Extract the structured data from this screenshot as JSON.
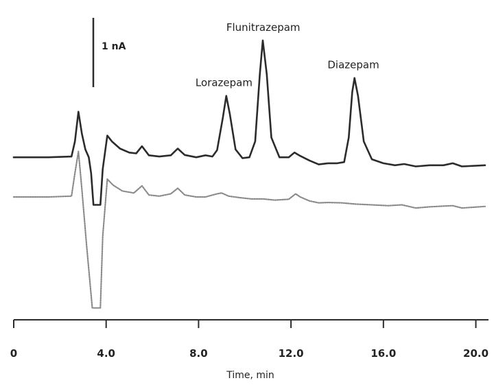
{
  "chart_data": {
    "type": "line",
    "title": "",
    "xlabel": "Time, min",
    "ylabel": "",
    "xlim": [
      0,
      20.4
    ],
    "ylim": [
      -4.1,
      3.45
    ],
    "xticks": [
      0,
      4,
      8,
      12,
      16,
      20
    ],
    "xtick_labels": [
      "0",
      "4.0",
      "8.0",
      "12.0",
      "16.0",
      "20.0"
    ],
    "scale_bar": {
      "label": "1 nA",
      "value_nA": 1.0
    },
    "peak_labels": [
      {
        "text": "Lorazepam",
        "x": 9.1
      },
      {
        "text": "Flunitrazepam",
        "x": 10.8
      },
      {
        "text": "Diazepam",
        "x": 14.7
      }
    ],
    "series": [
      {
        "style": "solid",
        "color": "#2b2b2b",
        "points": [
          [
            0,
            0.0
          ],
          [
            1.5,
            0.0
          ],
          [
            2.5,
            0.02
          ],
          [
            2.65,
            0.4
          ],
          [
            2.8,
            1.15
          ],
          [
            2.95,
            0.6
          ],
          [
            3.1,
            0.2
          ],
          [
            3.25,
            0.0
          ],
          [
            3.35,
            -0.4
          ],
          [
            3.45,
            -1.2
          ],
          [
            3.75,
            -1.2
          ],
          [
            3.85,
            -0.3
          ],
          [
            4.05,
            0.55
          ],
          [
            4.25,
            0.4
          ],
          [
            4.6,
            0.22
          ],
          [
            5.0,
            0.12
          ],
          [
            5.3,
            0.1
          ],
          [
            5.55,
            0.28
          ],
          [
            5.85,
            0.05
          ],
          [
            6.3,
            0.02
          ],
          [
            6.8,
            0.05
          ],
          [
            7.1,
            0.22
          ],
          [
            7.4,
            0.06
          ],
          [
            7.9,
            0.0
          ],
          [
            8.3,
            0.05
          ],
          [
            8.6,
            0.02
          ],
          [
            8.8,
            0.18
          ],
          [
            9.05,
            1.0
          ],
          [
            9.2,
            1.55
          ],
          [
            9.35,
            1.1
          ],
          [
            9.6,
            0.2
          ],
          [
            9.9,
            -0.02
          ],
          [
            10.2,
            0.0
          ],
          [
            10.45,
            0.4
          ],
          [
            10.65,
            2.1
          ],
          [
            10.78,
            2.95
          ],
          [
            10.95,
            2.1
          ],
          [
            11.15,
            0.5
          ],
          [
            11.5,
            0.0
          ],
          [
            11.9,
            0.0
          ],
          [
            12.15,
            0.12
          ],
          [
            12.35,
            0.05
          ],
          [
            12.8,
            -0.08
          ],
          [
            13.2,
            -0.18
          ],
          [
            13.6,
            -0.15
          ],
          [
            14.0,
            -0.15
          ],
          [
            14.3,
            -0.12
          ],
          [
            14.5,
            0.5
          ],
          [
            14.65,
            1.65
          ],
          [
            14.75,
            2.0
          ],
          [
            14.9,
            1.55
          ],
          [
            15.15,
            0.4
          ],
          [
            15.5,
            -0.05
          ],
          [
            16.0,
            -0.15
          ],
          [
            16.5,
            -0.2
          ],
          [
            16.9,
            -0.17
          ],
          [
            17.4,
            -0.23
          ],
          [
            18.0,
            -0.2
          ],
          [
            18.6,
            -0.2
          ],
          [
            19.0,
            -0.15
          ],
          [
            19.4,
            -0.23
          ],
          [
            20.4,
            -0.2
          ]
        ]
      },
      {
        "style": "dotted",
        "color": "#8a8a8a",
        "points": [
          [
            0,
            -1.0
          ],
          [
            1.5,
            -1.0
          ],
          [
            2.5,
            -0.98
          ],
          [
            2.65,
            -0.4
          ],
          [
            2.8,
            0.15
          ],
          [
            2.95,
            -0.8
          ],
          [
            3.15,
            -2.2
          ],
          [
            3.4,
            -3.8
          ],
          [
            3.75,
            -3.8
          ],
          [
            3.85,
            -2.0
          ],
          [
            4.05,
            -0.55
          ],
          [
            4.3,
            -0.7
          ],
          [
            4.7,
            -0.85
          ],
          [
            5.2,
            -0.9
          ],
          [
            5.55,
            -0.72
          ],
          [
            5.85,
            -0.95
          ],
          [
            6.3,
            -0.98
          ],
          [
            6.8,
            -0.92
          ],
          [
            7.1,
            -0.78
          ],
          [
            7.4,
            -0.95
          ],
          [
            7.9,
            -1.0
          ],
          [
            8.3,
            -1.0
          ],
          [
            8.8,
            -0.92
          ],
          [
            9.0,
            -0.9
          ],
          [
            9.3,
            -0.98
          ],
          [
            9.8,
            -1.02
          ],
          [
            10.3,
            -1.05
          ],
          [
            10.8,
            -1.05
          ],
          [
            11.3,
            -1.08
          ],
          [
            11.9,
            -1.06
          ],
          [
            12.2,
            -0.92
          ],
          [
            12.4,
            -1.0
          ],
          [
            12.8,
            -1.1
          ],
          [
            13.2,
            -1.15
          ],
          [
            13.6,
            -1.14
          ],
          [
            14.2,
            -1.15
          ],
          [
            14.8,
            -1.18
          ],
          [
            15.5,
            -1.2
          ],
          [
            16.2,
            -1.22
          ],
          [
            16.8,
            -1.2
          ],
          [
            17.4,
            -1.28
          ],
          [
            18.0,
            -1.25
          ],
          [
            18.6,
            -1.23
          ],
          [
            19.0,
            -1.22
          ],
          [
            19.4,
            -1.28
          ],
          [
            20.4,
            -1.24
          ]
        ]
      }
    ]
  }
}
